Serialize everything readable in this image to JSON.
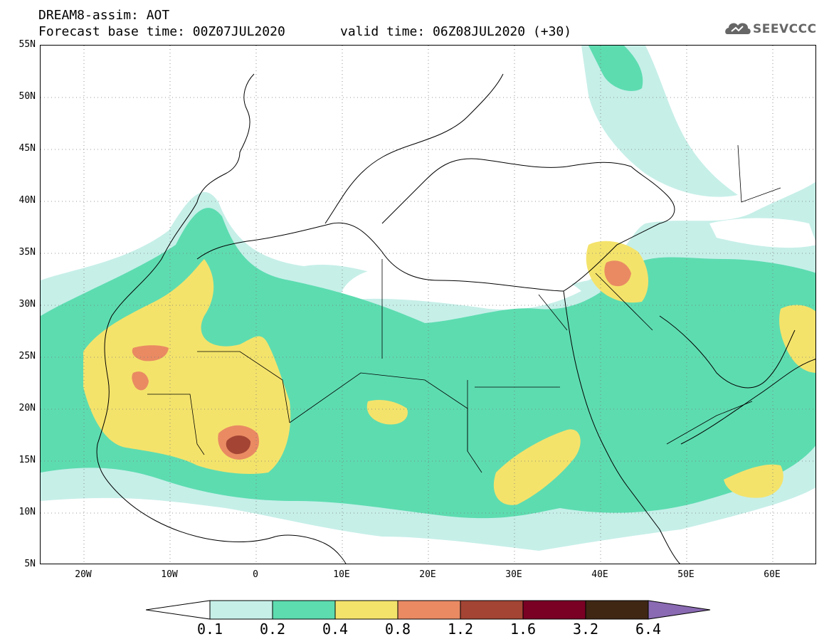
{
  "header": {
    "title": "DREAM8-assim: AOT",
    "base_time": "Forecast base time: 00Z07JUL2020",
    "valid_time": "valid time: 06Z08JUL2020 (+30)"
  },
  "logo": {
    "text": "SEEVCCC",
    "icon": "cloud-logo-icon",
    "color": "#666666"
  },
  "map": {
    "variable": "AOT",
    "lat_range": [
      5,
      55
    ],
    "lon_range": [
      -25,
      65
    ],
    "lat_labels": [
      "55N",
      "50N",
      "45N",
      "40N",
      "35N",
      "30N",
      "25N",
      "20N",
      "15N",
      "10N",
      "5N"
    ],
    "lon_labels": [
      "20W",
      "10W",
      "0",
      "10E",
      "20E",
      "30E",
      "40E",
      "50E",
      "60E"
    ],
    "gridlines": "dotted"
  },
  "colorbar": {
    "labels": [
      "0.1",
      "0.2",
      "0.4",
      "0.8",
      "1.2",
      "1.6",
      "3.2",
      "6.4"
    ],
    "colors": [
      "#ffffff",
      "#c6efe8",
      "#5ddcb0",
      "#f4e36b",
      "#e98a63",
      "#a44434",
      "#7a0024",
      "#3f2714",
      "#8a6ab2"
    ]
  }
}
